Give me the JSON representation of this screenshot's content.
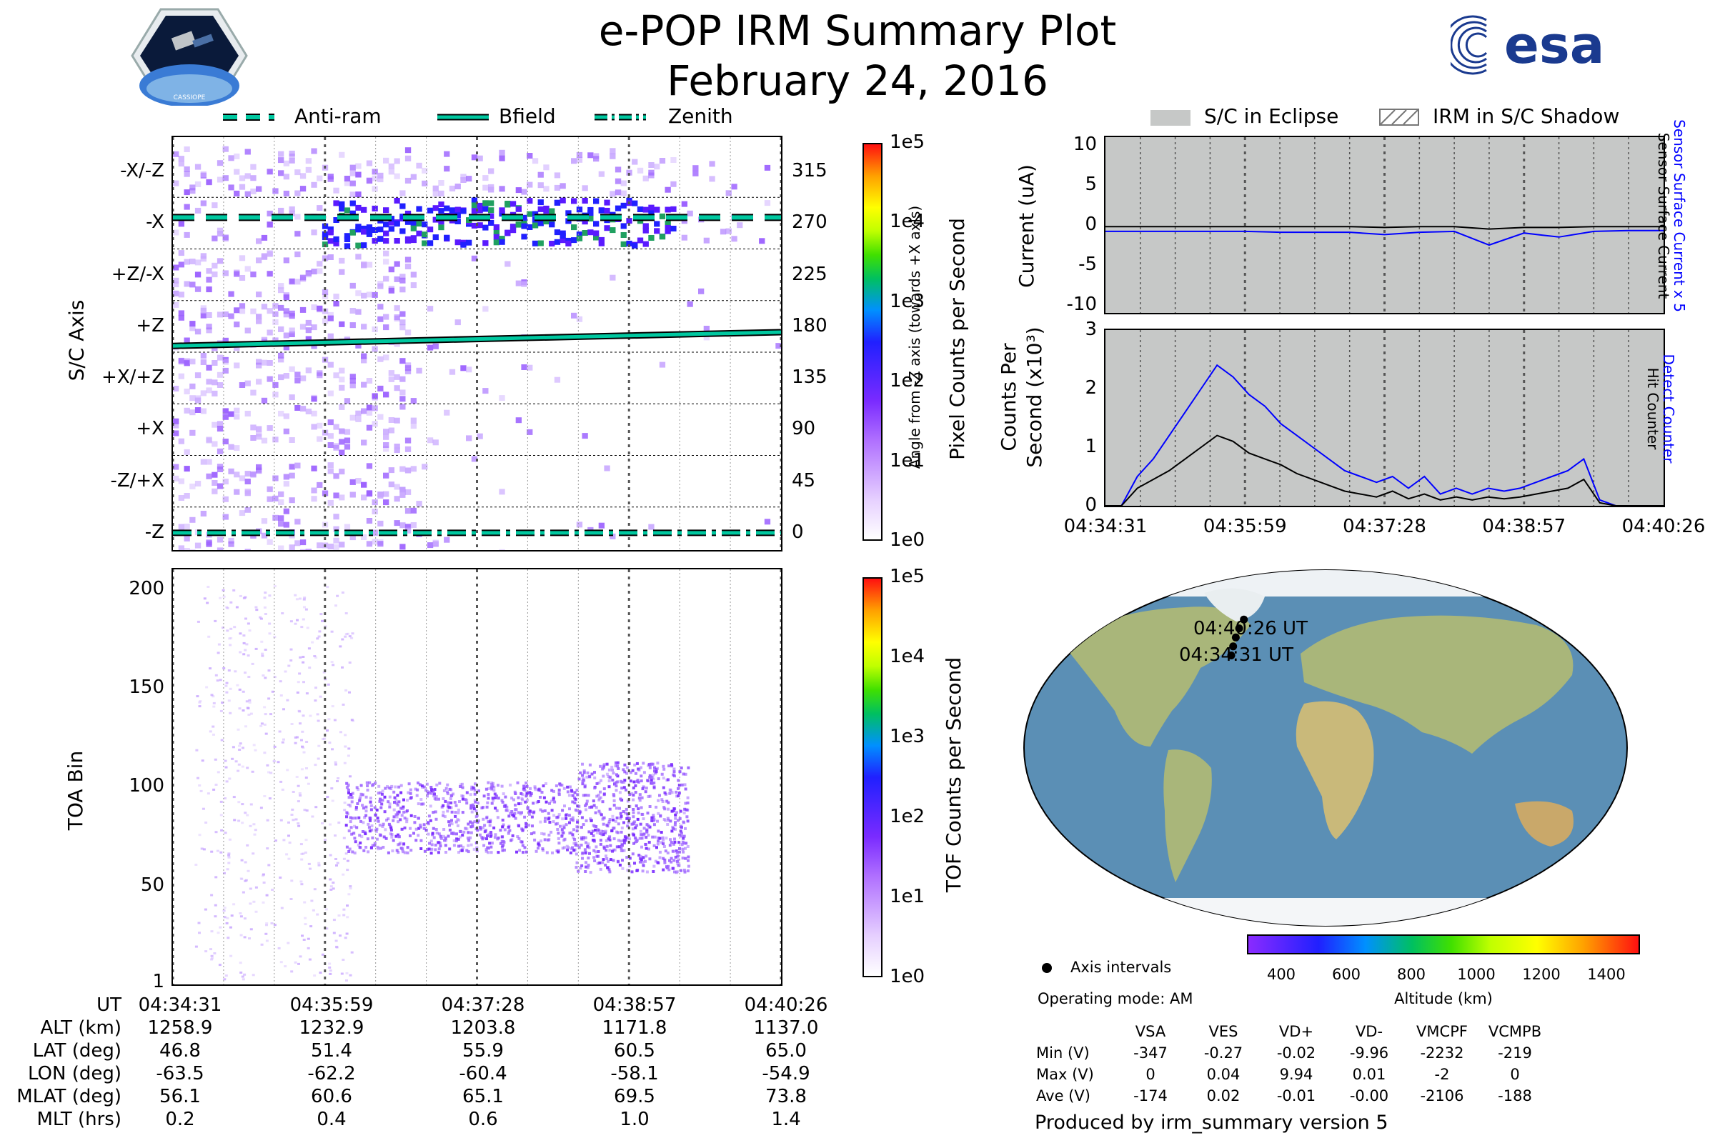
{
  "title_line1": "e-POP IRM Summary Plot",
  "title_line2": "February 24, 2016",
  "logos": {
    "left": "CASSIOPE",
    "right": "esa"
  },
  "colors": {
    "anti_ram": "#00c8a0",
    "bfield": "#00c8a0",
    "zenith": "#00c8a0",
    "eclipse": "#c6c8c7",
    "sensor_current_x5": "#0000ff",
    "sensor_surface_current": "#000000",
    "detect_counter": "#0000ff",
    "hit_counter": "#000000",
    "ocean": "#5b8fb5",
    "land": "#a9b67a"
  },
  "top_legend": {
    "anti_ram": "Anti-ram",
    "bfield": "Bfield",
    "zenith": "Zenith"
  },
  "right_legend": {
    "eclipse": "S/C in Eclipse",
    "shadow": "IRM in S/C Shadow"
  },
  "chart_data": [
    {
      "type": "heatmap",
      "name": "pixel",
      "ylabel": "S/C Axis",
      "y2label": "Angle from -Z axis (towards +X axis)",
      "yticklabels": [
        "-X/-Z",
        "-X",
        "+Z/-X",
        "+Z",
        "+X/+Z",
        "+X",
        "-Z/+X",
        "-Z"
      ],
      "y2ticklabels": [
        "315",
        "270",
        "225",
        "180",
        "135",
        "90",
        "45",
        "0"
      ],
      "y2ticks": [
        315,
        270,
        225,
        180,
        135,
        90,
        45,
        0
      ],
      "ylim": [
        -15,
        345
      ],
      "colorbar_label": "Pixel Counts per Second",
      "colorbar_ticks": [
        "1e5",
        "1e4",
        "1e3",
        "1e2",
        "1e1",
        "1e0"
      ],
      "bfield_angle": {
        "start": 163,
        "end": 175
      },
      "anti_ram_angle": 275,
      "zenith_angle": 0
    },
    {
      "type": "heatmap",
      "name": "tof",
      "ylabel": "TOA Bin",
      "yticks": [
        1,
        50,
        100,
        150,
        200
      ],
      "ylim": [
        0,
        210
      ],
      "colorbar_label": "TOF Counts per Second",
      "colorbar_ticks": [
        "1e5",
        "1e4",
        "1e3",
        "1e2",
        "1e1",
        "1e0"
      ],
      "band_center": 85
    },
    {
      "type": "line",
      "name": "current",
      "ylabel": "Current (uA)",
      "yticks": [
        10,
        5,
        0,
        -5,
        -10
      ],
      "ylim": [
        -11,
        11
      ],
      "series": [
        {
          "name": "Sensor Surface Current x 5",
          "values": [
            -0.8,
            -0.8,
            -0.8,
            -0.8,
            -0.8,
            -0.9,
            -0.9,
            -0.9,
            -1.2,
            -0.9,
            -0.8,
            -2.5,
            -1.0,
            -1.5,
            -0.8,
            -0.7,
            -0.7
          ]
        },
        {
          "name": "Sensor Surface Current",
          "values": [
            -0.2,
            -0.2,
            -0.2,
            -0.2,
            -0.2,
            -0.2,
            -0.2,
            -0.2,
            -0.3,
            -0.2,
            -0.2,
            -0.5,
            -0.3,
            -0.3,
            -0.2,
            -0.2,
            -0.2
          ]
        }
      ]
    },
    {
      "type": "line",
      "name": "counts",
      "ylabel": "Counts Per Second (x10³)",
      "yticks": [
        3,
        2,
        1,
        0
      ],
      "ylim": [
        0,
        3
      ],
      "x": [
        "04:34:31",
        "04:34:41",
        "04:34:51",
        "04:35:01",
        "04:35:11",
        "04:35:21",
        "04:35:31",
        "04:35:41",
        "04:35:51",
        "04:36:01",
        "04:36:11",
        "04:36:21",
        "04:36:31",
        "04:36:41",
        "04:36:51",
        "04:37:01",
        "04:37:11",
        "04:37:21",
        "04:37:31",
        "04:37:41",
        "04:37:51",
        "04:38:01",
        "04:38:11",
        "04:38:21",
        "04:38:31",
        "04:38:41",
        "04:38:51",
        "04:39:01",
        "04:39:11",
        "04:39:21",
        "04:39:31",
        "04:39:41",
        "04:39:51",
        "04:40:01",
        "04:40:11",
        "04:40:26"
      ],
      "series": [
        {
          "name": "Detect Counter",
          "values": [
            0.0,
            0.0,
            0.5,
            0.8,
            1.2,
            1.6,
            2.0,
            2.4,
            2.2,
            1.9,
            1.7,
            1.4,
            1.2,
            1.0,
            0.8,
            0.6,
            0.5,
            0.4,
            0.5,
            0.3,
            0.5,
            0.2,
            0.3,
            0.2,
            0.3,
            0.25,
            0.3,
            0.4,
            0.5,
            0.6,
            0.8,
            0.1,
            0.0,
            0.0,
            0.0,
            0.0
          ]
        },
        {
          "name": "Hit Counter",
          "values": [
            0.0,
            0.0,
            0.3,
            0.45,
            0.6,
            0.8,
            1.0,
            1.2,
            1.1,
            0.9,
            0.8,
            0.7,
            0.55,
            0.45,
            0.35,
            0.25,
            0.2,
            0.15,
            0.25,
            0.12,
            0.2,
            0.1,
            0.15,
            0.1,
            0.15,
            0.12,
            0.15,
            0.2,
            0.25,
            0.3,
            0.45,
            0.05,
            0.0,
            0.0,
            0.0,
            0.0
          ]
        }
      ]
    }
  ],
  "time_ticks": [
    "04:34:31",
    "04:35:59",
    "04:37:28",
    "04:38:57",
    "04:40:26"
  ],
  "right_time_ticks": [
    "04:34:31",
    "04:35:59",
    "04:37:28",
    "04:38:57",
    "04:40:26"
  ],
  "info_table": {
    "labels": [
      "UT",
      "ALT (km)",
      "LAT (deg)",
      "LON (deg)",
      "MLAT (deg)",
      "MLT (hrs)"
    ],
    "columns": [
      [
        "04:34:31",
        "1258.9",
        "46.8",
        "-63.5",
        "56.1",
        "0.2"
      ],
      [
        "04:35:59",
        "1232.9",
        "51.4",
        "-62.2",
        "60.6",
        "0.4"
      ],
      [
        "04:37:28",
        "1203.8",
        "55.9",
        "-60.4",
        "65.1",
        "0.6"
      ],
      [
        "04:38:57",
        "1171.8",
        "60.5",
        "-58.1",
        "69.5",
        "1.0"
      ],
      [
        "04:40:26",
        "1137.0",
        "65.0",
        "-54.9",
        "73.8",
        "1.4"
      ]
    ]
  },
  "map": {
    "start_label": "04:34:31 UT",
    "end_label": "04:40:26 UT",
    "track": [
      {
        "lat": 46.8,
        "lon": -63.5
      },
      {
        "lat": 51.4,
        "lon": -62.2
      },
      {
        "lat": 55.9,
        "lon": -60.4
      },
      {
        "lat": 60.5,
        "lon": -58.1
      },
      {
        "lat": 65.0,
        "lon": -54.9
      }
    ]
  },
  "altitude_colorbar": {
    "label": "Altitude (km)",
    "ticks": [
      "400",
      "600",
      "800",
      "1000",
      "1200",
      "1400"
    ]
  },
  "axis_intervals_label": "Axis intervals",
  "operating_mode": "Operating mode: AM",
  "voltage_table": {
    "headers": [
      "VSA",
      "VES",
      "VD+",
      "VD-",
      "VMCPF",
      "VCMPB"
    ],
    "rows": [
      {
        "label": "Min (V)",
        "values": [
          "-347",
          "-0.27",
          "-0.02",
          "-9.96",
          "-2232",
          "-219"
        ]
      },
      {
        "label": "Max (V)",
        "values": [
          "0",
          "0.04",
          "9.94",
          "0.01",
          "-2",
          "0"
        ]
      },
      {
        "label": "Ave (V)",
        "values": [
          "-174",
          "0.02",
          "-0.01",
          "-0.00",
          "-2106",
          "-188"
        ]
      }
    ]
  },
  "footer": "Produced by irm_summary version 5"
}
